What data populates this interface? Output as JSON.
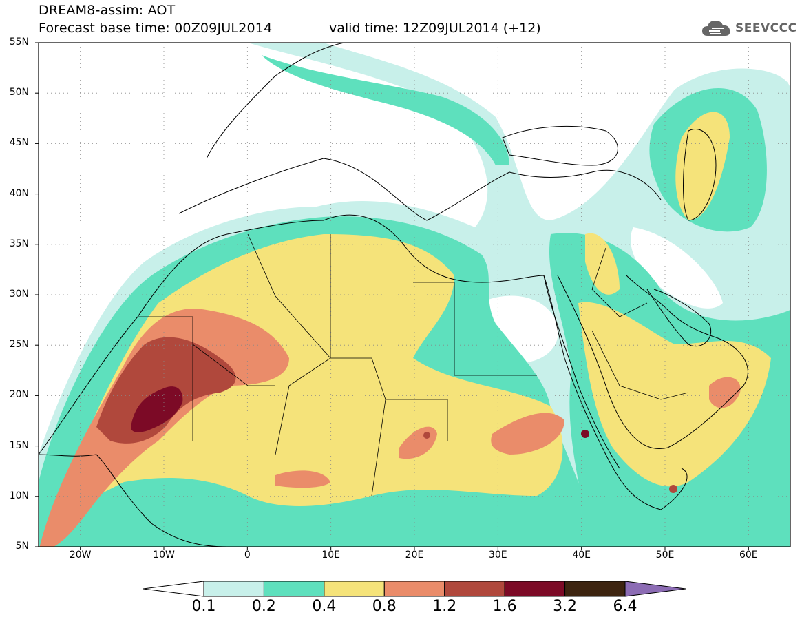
{
  "header": {
    "line1": "DREAM8-assim: AOT",
    "line2_left": "Forecast base time: 00Z09JUL2014",
    "line2_right": "valid time: 12Z09JUL2014 (+12)",
    "logo_text": "SEEVCCC",
    "logo_icon": "cloud-icon"
  },
  "map": {
    "lat_labels": [
      "55N",
      "50N",
      "45N",
      "40N",
      "35N",
      "30N",
      "25N",
      "20N",
      "15N",
      "10N",
      "5N"
    ],
    "lon_labels": [
      "20W",
      "10W",
      "0",
      "10E",
      "20E",
      "30E",
      "40E",
      "50E",
      "60E"
    ],
    "lat_range": [
      5,
      55
    ],
    "lon_range": [
      -25,
      65
    ],
    "grid": "dotted"
  },
  "colorbar": {
    "levels": [
      "0.1",
      "0.2",
      "0.4",
      "0.8",
      "1.2",
      "1.6",
      "3.2",
      "6.4"
    ],
    "colors": [
      "#ffffff",
      "#c8f0ea",
      "#5ee0bd",
      "#f5e37a",
      "#ea8c6a",
      "#b0483c",
      "#7c0a26",
      "#3d2410",
      "#8c6cb4"
    ]
  }
}
